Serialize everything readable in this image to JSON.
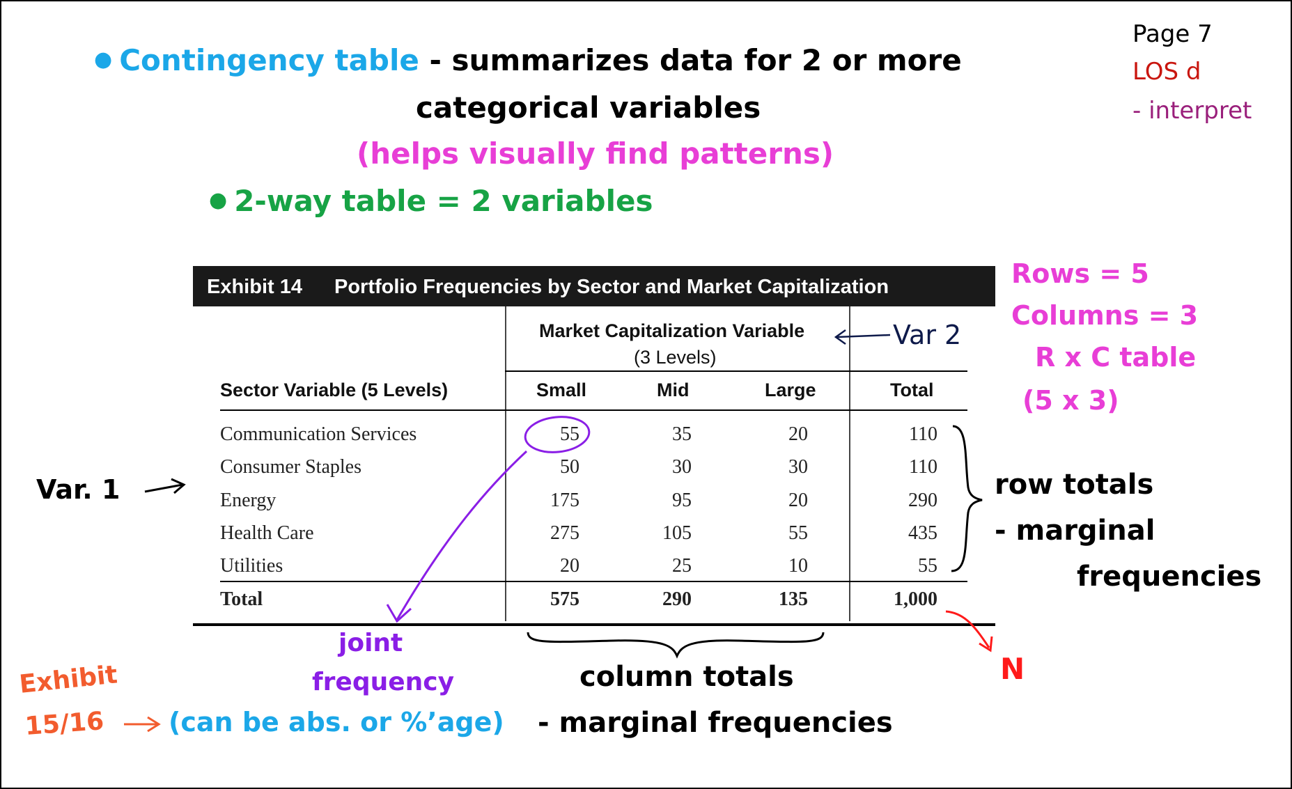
{
  "notes": {
    "contingency_term": "Contingency table",
    "contingency_def1": "- summarizes data for 2 or more",
    "contingency_def2": "categorical variables",
    "contingency_aside": "(helps visually find patterns)",
    "two_way": "2-way table = 2 variables",
    "page": "Page 7",
    "los": "LOS d",
    "interpret": "- interpret",
    "rows": "Rows = 5",
    "columns": "Columns = 3",
    "rxc": "R x C table",
    "dims": "(5 x 3)",
    "var1": "Var. 1",
    "var2": "Var 2",
    "row_totals_1": "row totals",
    "row_totals_2": "- marginal",
    "row_totals_3": "frequencies",
    "col_totals_1": "column totals",
    "col_totals_2": "- marginal frequencies",
    "joint_1": "joint",
    "joint_2": "frequency",
    "abs_pct": "(can be abs. or %’age)",
    "exhibit_ref_1": "Exhibit",
    "exhibit_ref_2": "15/16",
    "n_label": "N"
  },
  "colors": {
    "cyan": "#1ba7e8",
    "magenta": "#e83ed6",
    "green": "#17a345",
    "purple": "#8a1ee6",
    "orange": "#f25c2e",
    "red": "#ff1a1a"
  },
  "table": {
    "exhibit_number": "Exhibit 14",
    "title": "Portfolio Frequencies by Sector and Market Capitalization",
    "col_var_label_1": "Market Capitalization Variable",
    "col_var_label_2": "(3 Levels)",
    "row_var_label": "Sector Variable (5 Levels)",
    "columns": [
      "Small",
      "Mid",
      "Large",
      "Total"
    ],
    "rows": [
      {
        "label": "Communication Services",
        "values": [
          "55",
          "35",
          "20",
          "110"
        ]
      },
      {
        "label": "Consumer Staples",
        "values": [
          "50",
          "30",
          "30",
          "110"
        ]
      },
      {
        "label": "Energy",
        "values": [
          "175",
          "95",
          "20",
          "290"
        ]
      },
      {
        "label": "Health Care",
        "values": [
          "275",
          "105",
          "55",
          "435"
        ]
      },
      {
        "label": "Utilities",
        "values": [
          "20",
          "25",
          "10",
          "55"
        ]
      }
    ],
    "total_row": {
      "label": "Total",
      "values": [
        "575",
        "290",
        "135",
        "1,000"
      ]
    }
  }
}
